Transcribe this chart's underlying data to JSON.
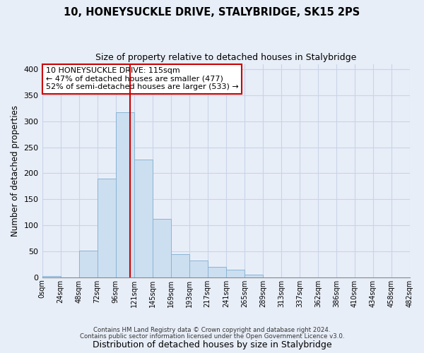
{
  "title": "10, HONEYSUCKLE DRIVE, STALYBRIDGE, SK15 2PS",
  "subtitle": "Size of property relative to detached houses in Stalybridge",
  "xlabel": "Distribution of detached houses by size in Stalybridge",
  "ylabel": "Number of detached properties",
  "footnote1": "Contains HM Land Registry data © Crown copyright and database right 2024.",
  "footnote2": "Contains public sector information licensed under the Open Government Licence v3.0.",
  "bar_edges": [
    0,
    24,
    48,
    72,
    96,
    120,
    144,
    168,
    192,
    216,
    240,
    264,
    288,
    312,
    336,
    360,
    384,
    408,
    432,
    456,
    480
  ],
  "bar_heights": [
    2,
    0,
    52,
    190,
    317,
    226,
    113,
    45,
    33,
    20,
    15,
    5,
    0,
    0,
    0,
    0,
    0,
    0,
    0,
    0
  ],
  "property_size": 115,
  "property_line_color": "#cc0000",
  "bar_color": "#ccdff0",
  "bar_edge_color": "#8ab4d4",
  "annotation_line1": "10 HONEYSUCKLE DRIVE: 115sqm",
  "annotation_line2": "← 47% of detached houses are smaller (477)",
  "annotation_line3": "52% of semi-detached houses are larger (533) →",
  "annotation_box_color": "#ffffff",
  "annotation_box_edge": "#cc0000",
  "ylim": [
    0,
    410
  ],
  "tick_labels": [
    "0sqm",
    "24sqm",
    "48sqm",
    "72sqm",
    "96sqm",
    "121sqm",
    "145sqm",
    "169sqm",
    "193sqm",
    "217sqm",
    "241sqm",
    "265sqm",
    "289sqm",
    "313sqm",
    "337sqm",
    "362sqm",
    "386sqm",
    "410sqm",
    "434sqm",
    "458sqm",
    "482sqm"
  ],
  "background_color": "#e8eef8",
  "grid_color": "#c8d4e8"
}
